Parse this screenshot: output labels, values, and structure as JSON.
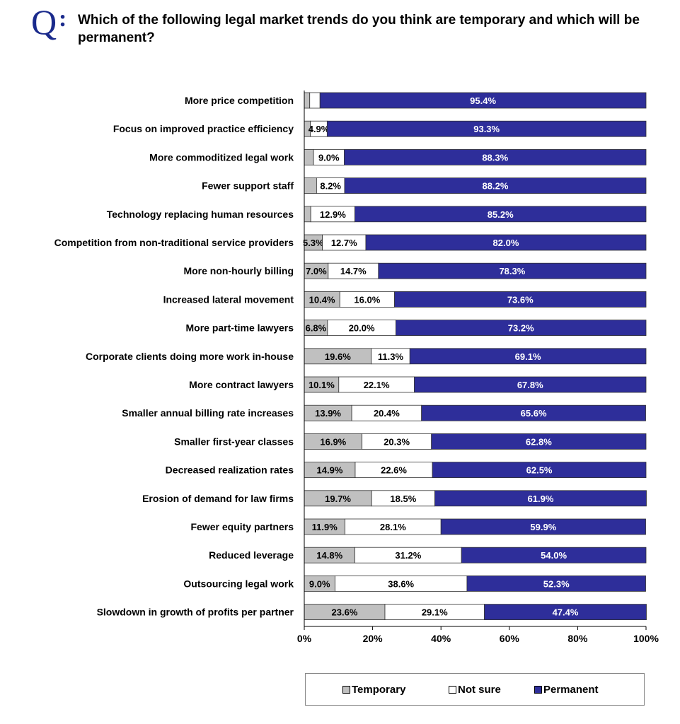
{
  "header": {
    "q_letter": "Q",
    "q_colon": ":",
    "question": "Which of the following legal market trends do you think are temporary and which will be permanent?"
  },
  "colors": {
    "temporary": "#c0c0c0",
    "not_sure": "#ffffff",
    "permanent": "#2e2e9a",
    "title": "#1a2a8c"
  },
  "chart_data": {
    "type": "bar",
    "orientation": "horizontal",
    "stacked": true,
    "categories": [
      "More price competition",
      "Focus on improved practice efficiency",
      "More commoditized legal work",
      "Fewer support staff",
      "Technology replacing human resources",
      "Competition from non-traditional service providers",
      "More non-hourly billing",
      "Increased lateral movement",
      "More part-time lawyers",
      "Corporate clients doing more work in-house",
      "More contract lawyers",
      "Smaller annual billing rate increases",
      "Smaller first-year classes",
      "Decreased realization rates",
      "Erosion of demand for law firms",
      "Fewer equity partners",
      "Reduced leverage",
      "Outsourcing legal work",
      "Slowdown in growth of profits per partner"
    ],
    "series": [
      {
        "name": "Temporary",
        "values": [
          1.6,
          1.8,
          2.7,
          3.6,
          1.9,
          5.3,
          7.0,
          10.4,
          6.8,
          19.6,
          10.1,
          13.9,
          16.9,
          14.9,
          19.7,
          11.9,
          14.8,
          9.0,
          23.6
        ],
        "labels": [
          "",
          "",
          "",
          "",
          "",
          "5.3%",
          "7.0%",
          "10.4%",
          "6.8%",
          "19.6%",
          "10.1%",
          "13.9%",
          "16.9%",
          "14.9%",
          "19.7%",
          "11.9%",
          "14.8%",
          "9.0%",
          "23.6%"
        ]
      },
      {
        "name": "Not sure",
        "values": [
          3.0,
          4.9,
          9.0,
          8.2,
          12.9,
          12.7,
          14.7,
          16.0,
          20.0,
          11.3,
          22.1,
          20.4,
          20.3,
          22.6,
          18.5,
          28.1,
          31.2,
          38.6,
          29.1
        ],
        "labels": [
          "",
          "4.9%",
          "9.0%",
          "8.2%",
          "12.9%",
          "12.7%",
          "14.7%",
          "16.0%",
          "20.0%",
          "11.3%",
          "22.1%",
          "20.4%",
          "20.3%",
          "22.6%",
          "18.5%",
          "28.1%",
          "31.2%",
          "38.6%",
          "29.1%"
        ]
      },
      {
        "name": "Permanent",
        "values": [
          95.4,
          93.3,
          88.3,
          88.2,
          85.2,
          82.0,
          78.3,
          73.6,
          73.2,
          69.1,
          67.8,
          65.6,
          62.8,
          62.5,
          61.9,
          59.9,
          54.0,
          52.3,
          47.4
        ],
        "labels": [
          "95.4%",
          "93.3%",
          "88.3%",
          "88.2%",
          "85.2%",
          "82.0%",
          "78.3%",
          "73.6%",
          "73.2%",
          "69.1%",
          "67.8%",
          "65.6%",
          "62.8%",
          "62.5%",
          "61.9%",
          "59.9%",
          "54.0%",
          "52.3%",
          "47.4%"
        ]
      }
    ],
    "xlim": [
      0,
      100
    ],
    "xticks": [
      "0%",
      "20%",
      "40%",
      "60%",
      "80%",
      "100%"
    ],
    "grid": false,
    "legend": "bottom",
    "title": "",
    "xlabel": "",
    "ylabel": ""
  }
}
